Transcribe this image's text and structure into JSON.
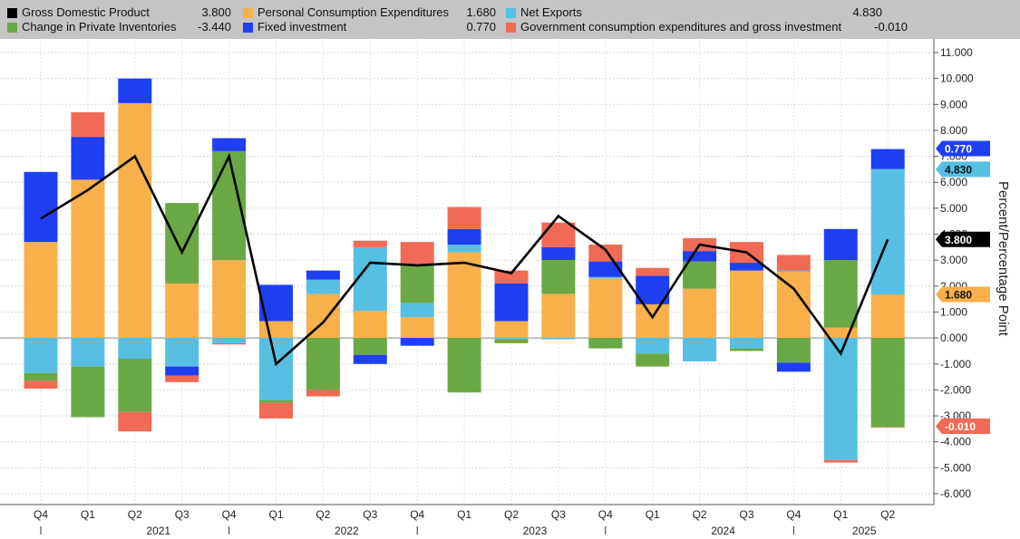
{
  "colors": {
    "gdp": "#000000",
    "pce": "#f7b04a",
    "netexports": "#56bfe3",
    "inventories": "#6aa845",
    "fixed": "#1f3ff2",
    "gov": "#f06a55",
    "legend_bg": "#c4c4c4"
  },
  "legend": [
    {
      "key": "gdp",
      "label": "Gross Domestic Product",
      "value": "3.800"
    },
    {
      "key": "pce",
      "label": "Personal Consumption Expenditures",
      "value": "1.680"
    },
    {
      "key": "netexports",
      "label": "Net Exports",
      "value": "4.830"
    },
    {
      "key": "inventories",
      "label": "Change in Private Inventories",
      "value": "-3.440"
    },
    {
      "key": "fixed",
      "label": "Fixed investment",
      "value": "0.770"
    },
    {
      "key": "gov",
      "label": "Government consumption expenditures and gross investment",
      "value": "-0.010"
    }
  ],
  "chart_data": {
    "type": "bar",
    "stacked": true,
    "ylabel": "Percent/Percentage Point",
    "ylim": [
      -6,
      11
    ],
    "yticks": [
      "11.000",
      "10.000",
      "9.000",
      "8.000",
      "7.000",
      "6.000",
      "5.000",
      "4.000",
      "3.000",
      "2.000",
      "1.000",
      "0.000",
      "-1.000",
      "-2.000",
      "-3.000",
      "-4.000",
      "-5.000",
      "-6.000"
    ],
    "categories": [
      "Q4",
      "Q1",
      "Q2",
      "Q3",
      "Q4",
      "Q1",
      "Q2",
      "Q3",
      "Q4",
      "Q1",
      "Q2",
      "Q3",
      "Q4",
      "Q1",
      "Q2",
      "Q3",
      "Q4",
      "Q1",
      "Q2"
    ],
    "years": [
      {
        "label": "2021",
        "from": 1,
        "to": 4
      },
      {
        "label": "2022",
        "from": 5,
        "to": 8
      },
      {
        "label": "2023",
        "from": 9,
        "to": 12
      },
      {
        "label": "2024",
        "from": 13,
        "to": 16
      },
      {
        "label": "2025",
        "from": 17,
        "to": 18
      }
    ],
    "grid": true,
    "legend_position": "top",
    "series": [
      {
        "key": "pce",
        "name": "Personal Consumption Expenditures",
        "values": [
          3.7,
          6.1,
          9.05,
          2.1,
          3.0,
          0.65,
          1.7,
          1.05,
          0.8,
          3.3,
          0.65,
          1.7,
          2.3,
          1.3,
          1.9,
          2.6,
          2.55,
          0.4,
          1.68
        ]
      },
      {
        "key": "netexports",
        "name": "Net Exports",
        "values": [
          -1.35,
          -1.1,
          -0.8,
          -1.1,
          -0.2,
          -2.4,
          0.55,
          2.45,
          0.55,
          0.3,
          -0.05,
          -0.05,
          0.05,
          -0.6,
          -0.9,
          -0.4,
          0.05,
          -4.7,
          4.83
        ]
      },
      {
        "key": "inventories",
        "name": "Change in Private Inventories",
        "values": [
          -0.3,
          -1.95,
          -2.05,
          3.1,
          4.2,
          -0.1,
          -2.0,
          -0.65,
          1.5,
          -2.1,
          -0.15,
          1.3,
          -0.4,
          -0.5,
          1.05,
          -0.1,
          -0.95,
          2.6,
          -3.44
        ]
      },
      {
        "key": "fixed",
        "name": "Fixed investment",
        "values": [
          2.7,
          1.65,
          0.95,
          -0.35,
          0.5,
          1.4,
          0.35,
          -0.35,
          -0.3,
          0.6,
          1.45,
          0.5,
          0.6,
          1.1,
          0.4,
          0.3,
          -0.35,
          1.2,
          0.77
        ]
      },
      {
        "key": "gov",
        "name": "Government consumption expenditures and gross investment",
        "values": [
          -0.3,
          0.95,
          -0.75,
          -0.25,
          -0.05,
          -0.6,
          -0.25,
          0.25,
          0.85,
          0.85,
          0.5,
          0.95,
          0.65,
          0.3,
          0.5,
          0.8,
          0.6,
          -0.1,
          -0.01
        ]
      },
      {
        "key": "gdp",
        "name": "Gross Domestic Product",
        "type": "line",
        "values": [
          4.6,
          5.7,
          7.0,
          3.3,
          7.0,
          -1.0,
          0.6,
          2.9,
          2.8,
          2.9,
          2.5,
          4.7,
          3.4,
          0.8,
          3.6,
          3.3,
          1.9,
          -0.6,
          3.8
        ]
      }
    ],
    "tags": [
      {
        "key": "fixed",
        "label": "0.770",
        "value": 7.3
      },
      {
        "key": "netexports",
        "label": "4.830",
        "value": 6.5
      },
      {
        "key": "gdp",
        "label": "3.800",
        "value": 3.8
      },
      {
        "key": "pce",
        "label": "1.680",
        "value": 1.68
      },
      {
        "key": "gov",
        "label": "-0.010",
        "value": -3.4
      }
    ]
  }
}
